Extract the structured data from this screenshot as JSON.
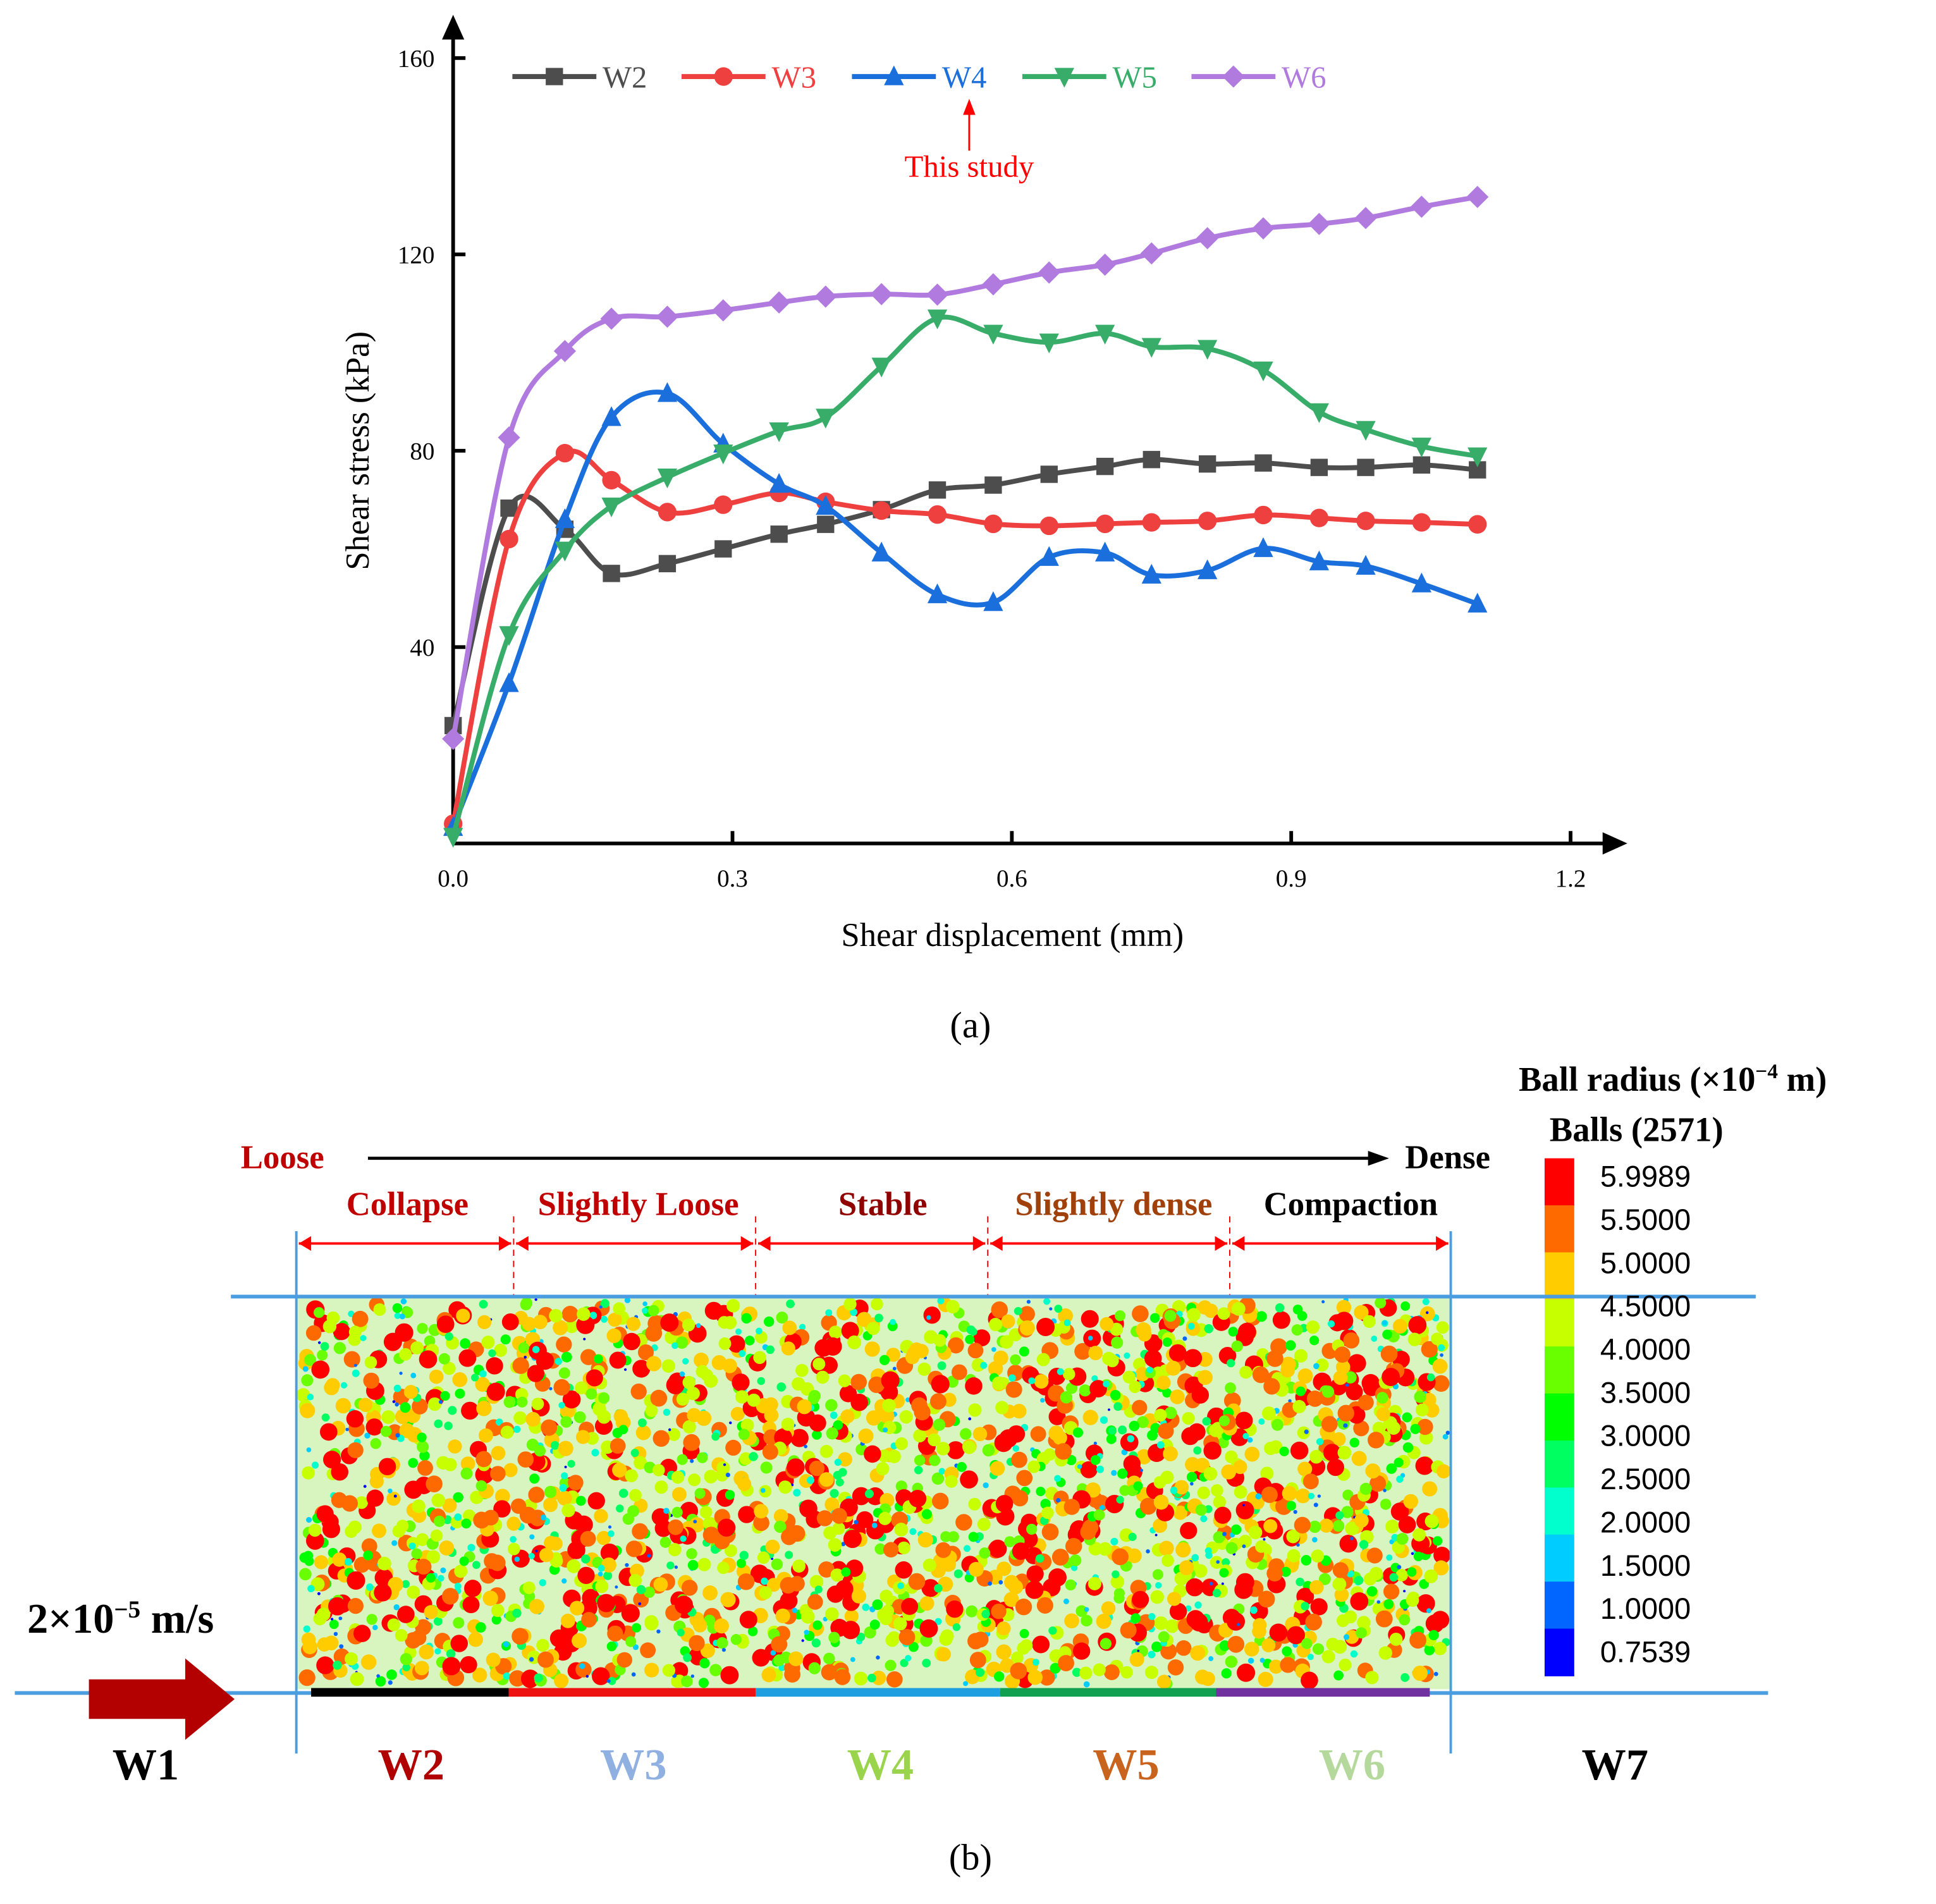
{
  "chart_data": {
    "type": "line",
    "panel_label": "(a)",
    "xlabel": "Shear displacement (mm)",
    "ylabel": "Shear stress (kPa)",
    "xlim": [
      0,
      1.2
    ],
    "ylim": [
      0,
      160
    ],
    "xticks": [
      "0.0",
      "0.3",
      "0.6",
      "0.9",
      "1.2"
    ],
    "yticks": [
      "40",
      "80",
      "120",
      "160"
    ],
    "grid": false,
    "legend_position": "top",
    "x": [
      0.0,
      0.06,
      0.12,
      0.17,
      0.23,
      0.29,
      0.35,
      0.4,
      0.46,
      0.52,
      0.58,
      0.64,
      0.7,
      0.75,
      0.81,
      0.87,
      0.93,
      0.98,
      1.04,
      1.1
    ],
    "series": [
      {
        "name": "W2",
        "color": "#4d4d4d",
        "marker": "square",
        "values": [
          24,
          68.3,
          64,
          55,
          57,
          60,
          63,
          65,
          68,
          72,
          73,
          75.2,
          76.8,
          78.2,
          77.3,
          77.5,
          76.6,
          76.6,
          77.1,
          76.1
        ]
      },
      {
        "name": "W3",
        "color": "#ef4040",
        "marker": "circle",
        "values": [
          4,
          62,
          79.5,
          74,
          67.5,
          69,
          71.4,
          69.6,
          67.8,
          67,
          65.1,
          64.7,
          65.1,
          65.4,
          65.7,
          66.9,
          66.3,
          65.7,
          65.4,
          65.0
        ]
      },
      {
        "name": "W4",
        "color": "#1a6fdc",
        "marker": "triangle-up",
        "values": [
          3.3,
          32.6,
          66,
          86.8,
          91.7,
          81.4,
          73.2,
          68.7,
          59.2,
          50.7,
          49.1,
          58.3,
          59.2,
          54.7,
          55.6,
          60.1,
          57.4,
          56.5,
          52.9,
          48.8
        ]
      },
      {
        "name": "W5",
        "color": "#38ad69",
        "marker": "triangle-down",
        "values": [
          1.4,
          42.5,
          59.7,
          68.7,
          74.6,
          79.5,
          84,
          86.8,
          97.2,
          107,
          103.9,
          102.1,
          103.9,
          101.2,
          100.8,
          96.4,
          87.9,
          84.3,
          80.9,
          78.9
        ]
      },
      {
        "name": "W6",
        "color": "#b07ade",
        "marker": "diamond",
        "values": [
          21.3,
          82.7,
          100.3,
          106.9,
          107.3,
          108.6,
          110.2,
          111.4,
          111.9,
          111.8,
          113.9,
          116.3,
          117.9,
          120.2,
          123.3,
          125.3,
          126.2,
          127.4,
          129.7,
          131.7
        ]
      }
    ],
    "annotation": {
      "text": "This study",
      "points_to": "W4",
      "color": "#ff0000"
    }
  },
  "panel_b": {
    "panel_label": "(b)",
    "colorbar": {
      "title": "Ball radius  (×10",
      "title_exp": "−4",
      "title_unit": " m)",
      "subtitle": "Balls (2571)",
      "labels": [
        "5.9989",
        "5.5000",
        "5.0000",
        "4.5000",
        "4.0000",
        "3.5000",
        "3.0000",
        "2.5000",
        "2.0000",
        "1.5000",
        "1.0000",
        "0.7539"
      ],
      "colors": [
        "#ff0000",
        "#ff6a00",
        "#ffcc00",
        "#c8ff00",
        "#6aff00",
        "#00ff00",
        "#00ff60",
        "#00ffcc",
        "#00ccff",
        "#0066ff",
        "#0000ff"
      ]
    },
    "density_axis": {
      "left": "Loose",
      "right": "Dense",
      "left_color": "#c00000",
      "right_color": "#000000"
    },
    "phases": [
      {
        "label": "Collapse",
        "color": "#c00000"
      },
      {
        "label": "Slightly Loose",
        "color": "#c00000"
      },
      {
        "label": "Stable",
        "color": "#900000"
      },
      {
        "label": "Slightly dense",
        "color": "#a0400a"
      },
      {
        "label": "Compaction",
        "color": "#000000"
      }
    ],
    "velocity": {
      "base": "2×10",
      "exp": "−5",
      "unit": " m/s"
    },
    "walls": [
      {
        "label": "W1",
        "color": "#000000"
      },
      {
        "label": "W2",
        "color": "#b00000",
        "bar": "#000000"
      },
      {
        "label": "W3",
        "color": "#8fb0e0",
        "bar": "#ee1111"
      },
      {
        "label": "W4",
        "color": "#9ad44c",
        "bar": "#1ea0e0"
      },
      {
        "label": "W5",
        "color": "#c8641e",
        "bar": "#10a050"
      },
      {
        "label": "W6",
        "color": "#b5d99c",
        "bar": "#7030a0"
      },
      {
        "label": "W7",
        "color": "#000000"
      }
    ]
  }
}
